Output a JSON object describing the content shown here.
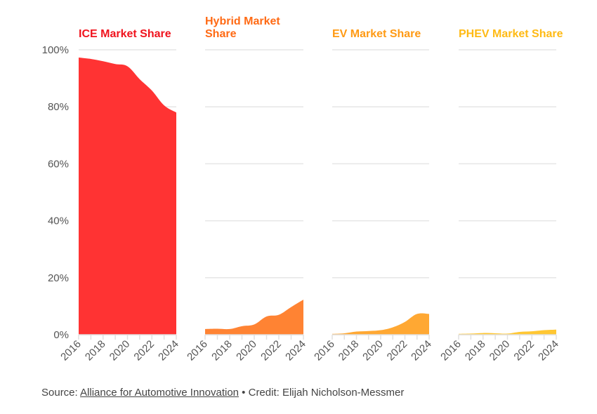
{
  "chart_data": [
    {
      "type": "area",
      "title": "ICE Market Share",
      "color": "#ff3333",
      "title_color": "#f0141e",
      "x": [
        2016,
        2017,
        2018,
        2019,
        2020,
        2021,
        2022,
        2023,
        2024
      ],
      "values": [
        97.3,
        96.8,
        96,
        95,
        94.2,
        89.7,
        85.7,
        80.5,
        78
      ],
      "ylim": [
        0,
        100
      ]
    },
    {
      "type": "area",
      "title": "Hybrid Market Share",
      "color": "#ff8333",
      "title_color": "#ff6a14",
      "x": [
        2016,
        2017,
        2018,
        2019,
        2020,
        2021,
        2022,
        2023,
        2024
      ],
      "values": [
        2,
        2.1,
        2,
        3,
        3.6,
        6.4,
        7,
        9.7,
        12.3
      ],
      "ylim": [
        0,
        100
      ]
    },
    {
      "type": "area",
      "title": "EV Market Share",
      "color": "#ffa833",
      "title_color": "#ff9a14",
      "x": [
        2016,
        2017,
        2018,
        2019,
        2020,
        2021,
        2022,
        2023,
        2024
      ],
      "values": [
        0.3,
        0.5,
        1.1,
        1.3,
        1.6,
        2.6,
        4.5,
        7.3,
        7.3
      ],
      "ylim": [
        0,
        100
      ]
    },
    {
      "type": "area",
      "title": "PHEV Market Share",
      "color": "#ffc733",
      "title_color": "#ffba14",
      "x": [
        2016,
        2017,
        2018,
        2019,
        2020,
        2021,
        2022,
        2023,
        2024
      ],
      "values": [
        0.3,
        0.4,
        0.6,
        0.5,
        0.4,
        1.0,
        1.2,
        1.6,
        1.8
      ],
      "ylim": [
        0,
        100
      ]
    }
  ],
  "y_ticks": [
    "0%",
    "20%",
    "40%",
    "60%",
    "80%",
    "100%"
  ],
  "x_tick_labels": [
    "2016",
    "2018",
    "2020",
    "2022",
    "2024"
  ],
  "grid": true,
  "footer": {
    "source_prefix": "Source: ",
    "source_link": "Alliance for Automotive Innovation",
    "separator": " • ",
    "credit": "Credit: Elijah Nicholson-Messmer"
  }
}
